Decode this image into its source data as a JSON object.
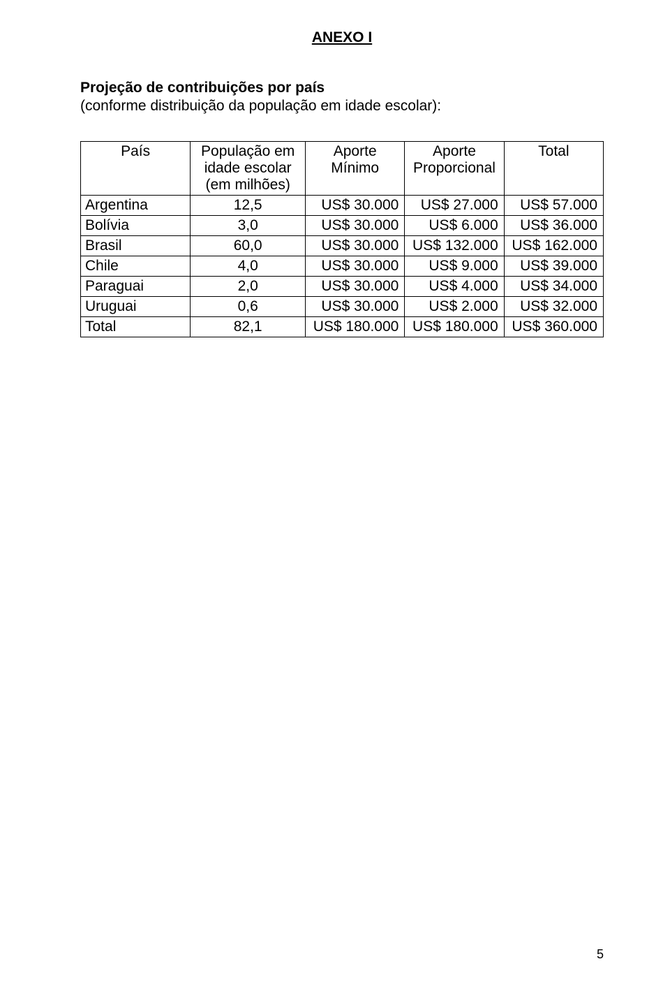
{
  "annex_title": "ANEXO I",
  "section_heading": "Projeção de contribuições por país",
  "section_sub": "(conforme distribuição da população em idade escolar):",
  "table": {
    "columns": [
      {
        "key": "country",
        "label": "País"
      },
      {
        "key": "population",
        "label_line1": "População em",
        "label_line2": "idade escolar",
        "label_line3": "(em milhões)"
      },
      {
        "key": "min",
        "label_line1": "Aporte",
        "label_line2": "Mínimo"
      },
      {
        "key": "prop",
        "label_line1": "Aporte",
        "label_line2": "Proporcional"
      },
      {
        "key": "total",
        "label": "Total"
      }
    ],
    "rows": [
      {
        "country": "Argentina",
        "population": "12,5",
        "min": "US$ 30.000",
        "prop": "US$ 27.000",
        "total": "US$ 57.000"
      },
      {
        "country": "Bolívia",
        "population": "3,0",
        "min": "US$ 30.000",
        "prop": "US$ 6.000",
        "total": "US$ 36.000"
      },
      {
        "country": "Brasil",
        "population": "60,0",
        "min": "US$ 30.000",
        "prop": "US$ 132.000",
        "total": "US$ 162.000"
      },
      {
        "country": "Chile",
        "population": "4,0",
        "min": "US$ 30.000",
        "prop": "US$ 9.000",
        "total": "US$ 39.000"
      },
      {
        "country": "Paraguai",
        "population": "2,0",
        "min": "US$ 30.000",
        "prop": "US$ 4.000",
        "total": "US$ 34.000"
      },
      {
        "country": "Uruguai",
        "population": "0,6",
        "min": "US$ 30.000",
        "prop": "US$ 2.000",
        "total": "US$ 32.000"
      },
      {
        "country": "Total",
        "population": "82,1",
        "min": "US$ 180.000",
        "prop": "US$ 180.000",
        "total": "US$ 360.000"
      }
    ]
  },
  "page_number": "5"
}
